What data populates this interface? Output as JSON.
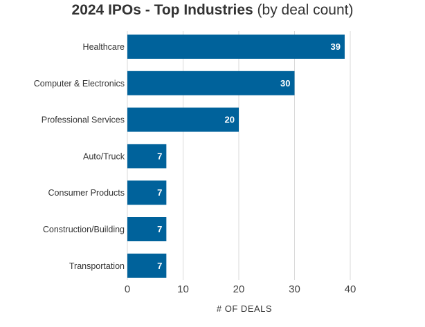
{
  "chart_data": {
    "type": "bar",
    "orientation": "horizontal",
    "title": "2024 IPOs - Top Industries",
    "subtitle": "(by deal count)",
    "xlabel": "# OF DEALS",
    "ylabel": "",
    "categories": [
      "Healthcare",
      "Computer & Electronics",
      "Professional Services",
      "Auto/Truck",
      "Consumer Products",
      "Construction/Building",
      "Transportation"
    ],
    "values": [
      39,
      30,
      20,
      7,
      7,
      7,
      7
    ],
    "xlim": [
      0,
      40
    ],
    "xticks": [
      0,
      10,
      20,
      30,
      40
    ],
    "grid": true,
    "data_labels": true,
    "bar_color": "#00629b",
    "grid_color": "#d9d9d9"
  }
}
